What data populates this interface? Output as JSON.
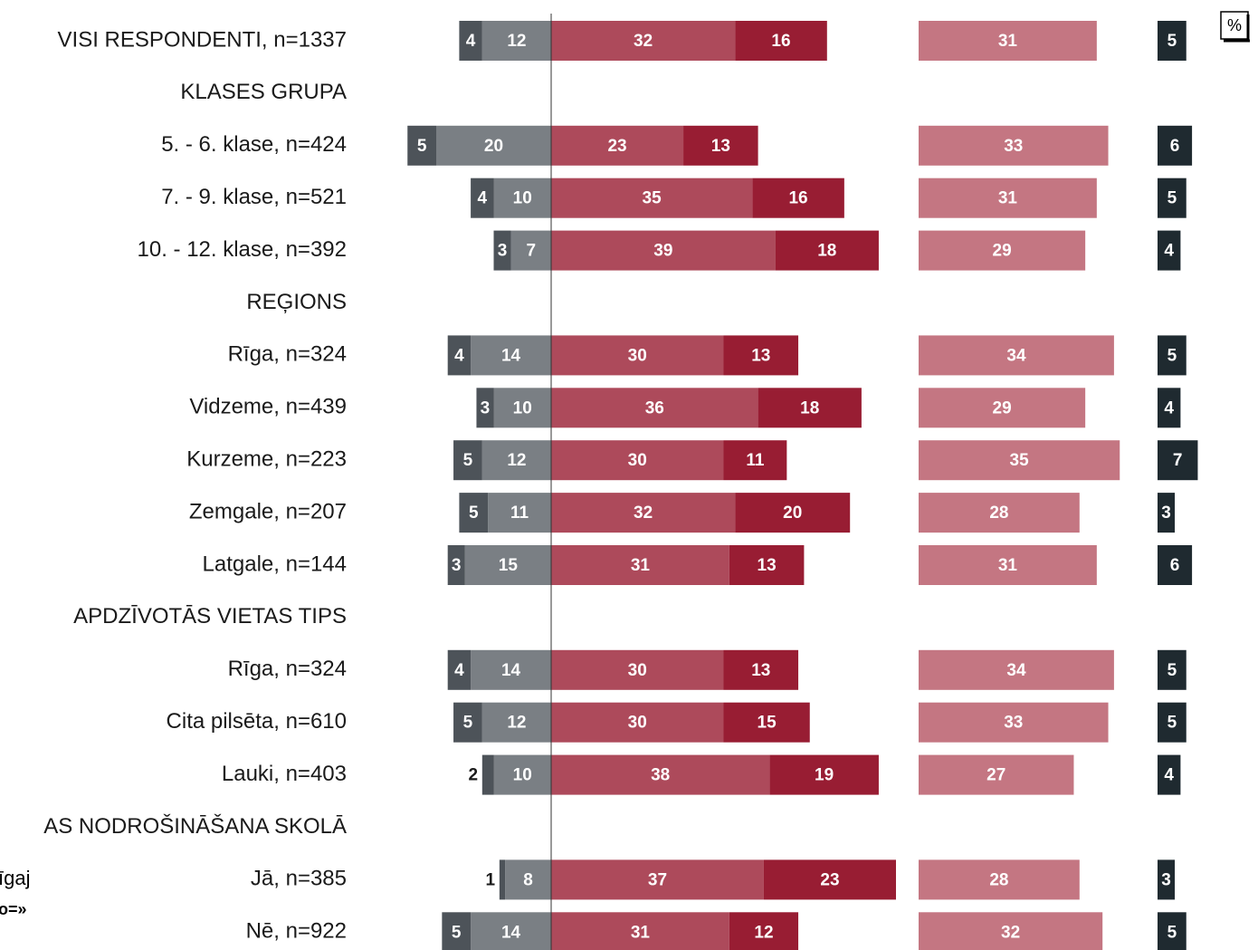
{
  "chart_data": {
    "type": "diverging-bar",
    "unit_label": "%",
    "categories": [
      "VISI RESPONDENTI, n=1337",
      "KLASES GRUPA",
      "5. - 6. klase, n=424",
      "7. - 9. klase, n=521",
      "10. - 12. klase, n=392",
      "REĢIONS",
      "Rīga, n=324",
      "Vidzeme, n=439",
      "Kurzeme, n=223",
      "Zemgale, n=207",
      "Latgale, n=144",
      "APDZĪVOTĀS VIETAS TIPS",
      "Rīga, n=324",
      "Cita pilsēta, n=610",
      "Lauki, n=403",
      "AS NODROŠINĀŠANA SKOLĀ",
      "Jā, n=385",
      "Nē, n=922"
    ],
    "series": [
      {
        "color": "#4d5359",
        "values": [
          4,
          null,
          5,
          4,
          3,
          null,
          4,
          3,
          5,
          5,
          3,
          null,
          4,
          5,
          2,
          null,
          1,
          5
        ]
      },
      {
        "color": "#7a7f84",
        "values": [
          12,
          null,
          20,
          10,
          7,
          null,
          14,
          10,
          12,
          11,
          15,
          null,
          14,
          12,
          10,
          null,
          8,
          14
        ]
      },
      {
        "color": "#ad4a5b",
        "values": [
          32,
          null,
          23,
          35,
          39,
          null,
          30,
          36,
          30,
          32,
          31,
          null,
          30,
          30,
          38,
          null,
          37,
          31
        ]
      },
      {
        "color": "#981d33",
        "values": [
          16,
          null,
          13,
          16,
          18,
          null,
          13,
          18,
          11,
          20,
          13,
          null,
          13,
          15,
          19,
          null,
          23,
          12
        ]
      },
      {
        "color": "#c47682",
        "values": [
          31,
          null,
          33,
          31,
          29,
          null,
          34,
          29,
          35,
          28,
          31,
          null,
          34,
          33,
          27,
          null,
          28,
          32
        ]
      },
      {
        "color": "#1f2a30",
        "values": [
          5,
          null,
          6,
          5,
          4,
          null,
          5,
          4,
          7,
          3,
          6,
          null,
          5,
          5,
          4,
          null,
          3,
          5
        ]
      }
    ],
    "fragments": [
      "īgaj",
      "o=»"
    ]
  }
}
